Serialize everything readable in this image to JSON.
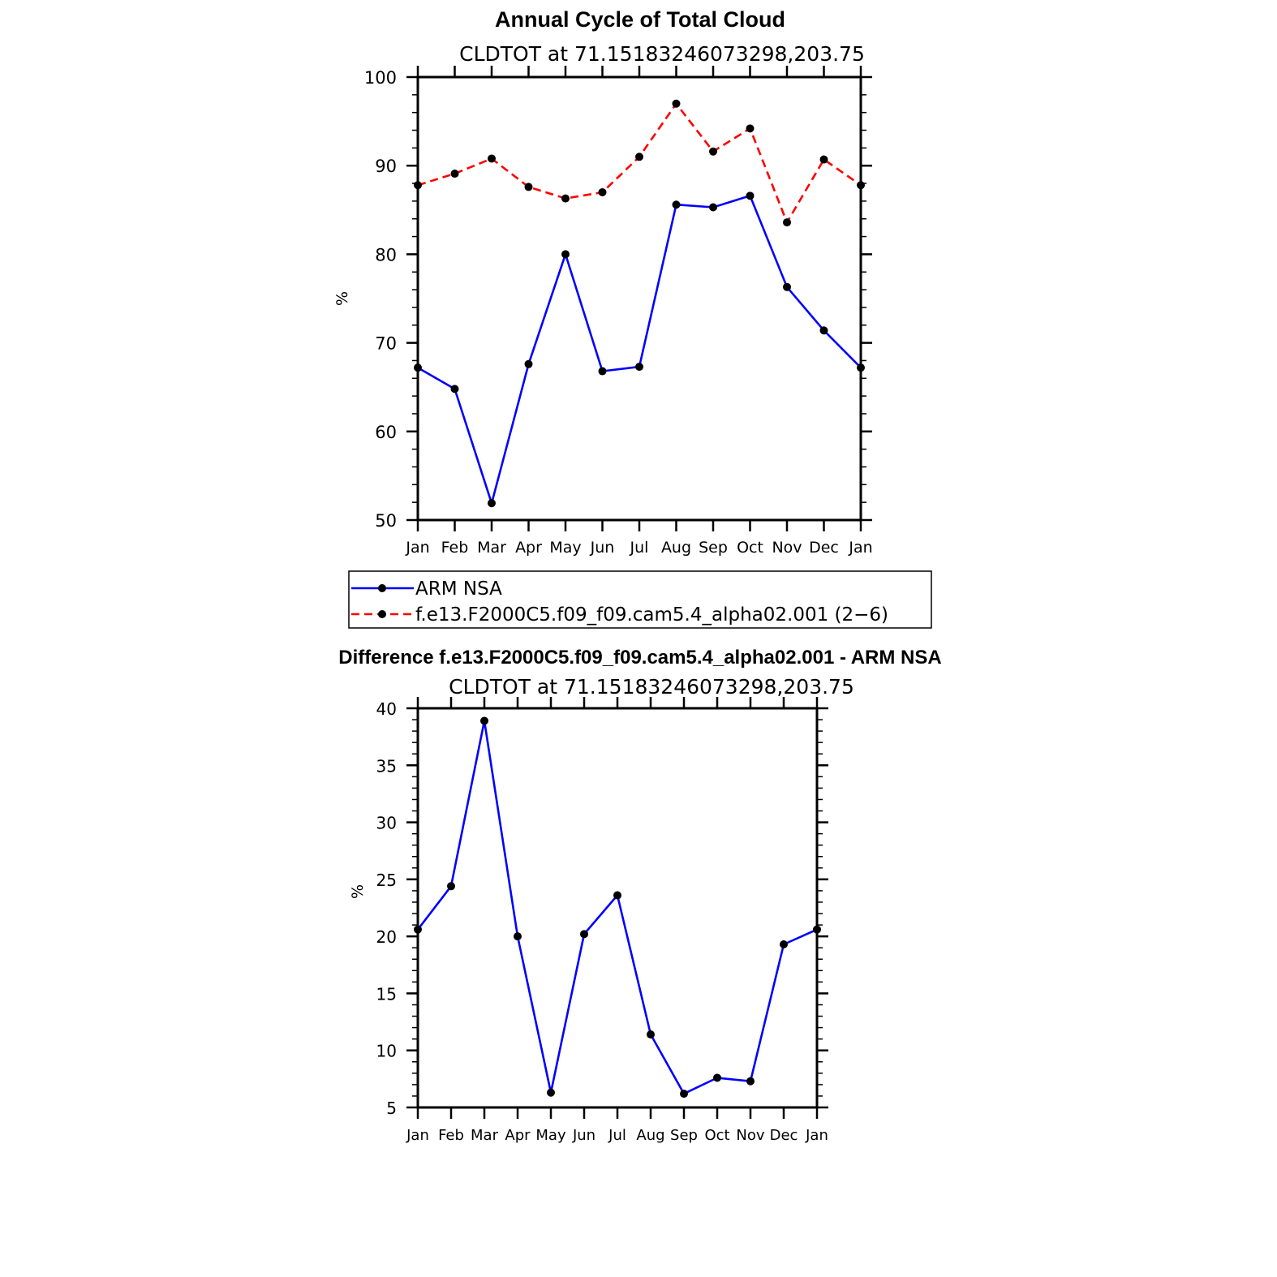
{
  "chart_data": [
    {
      "type": "line",
      "title": "Annual Cycle of Total Cloud",
      "subtitle": "CLDTOT at 71.15183246073298,203.75",
      "xlabel": "",
      "ylabel": "%",
      "categories": [
        "Jan",
        "Feb",
        "Mar",
        "Apr",
        "May",
        "Jun",
        "Jul",
        "Aug",
        "Sep",
        "Oct",
        "Nov",
        "Dec",
        "Jan"
      ],
      "ylim": [
        50,
        100
      ],
      "yticks": [
        50,
        60,
        70,
        80,
        90,
        100
      ],
      "grid": false,
      "legend_position": "bottom",
      "series": [
        {
          "name": "ARM NSA",
          "color": "#0000ff",
          "style": "solid",
          "values": [
            67.2,
            64.8,
            51.9,
            67.6,
            80.0,
            66.8,
            67.3,
            85.6,
            85.3,
            86.6,
            76.3,
            71.4,
            67.2
          ]
        },
        {
          "name": "f.e13.F2000C5.f09_f09.cam5.4_alpha02.001 (2−6)",
          "color": "#ff0000",
          "style": "dashed",
          "values": [
            87.8,
            89.1,
            90.8,
            87.6,
            86.3,
            87.0,
            91.0,
            97.0,
            91.6,
            94.2,
            83.6,
            90.7,
            87.8
          ]
        }
      ]
    },
    {
      "type": "line",
      "title": "Difference f.e13.F2000C5.f09_f09.cam5.4_alpha02.001 - ARM NSA",
      "subtitle": "CLDTOT at 71.15183246073298,203.75",
      "xlabel": "",
      "ylabel": "%",
      "categories": [
        "Jan",
        "Feb",
        "Mar",
        "Apr",
        "May",
        "Jun",
        "Jul",
        "Aug",
        "Sep",
        "Oct",
        "Nov",
        "Dec",
        "Jan"
      ],
      "ylim": [
        5,
        40
      ],
      "yticks": [
        5,
        10,
        15,
        20,
        25,
        30,
        35,
        40
      ],
      "grid": false,
      "series": [
        {
          "name": "Difference",
          "color": "#0000ff",
          "style": "solid",
          "values": [
            20.6,
            24.4,
            38.9,
            20.0,
            6.3,
            20.2,
            23.6,
            11.4,
            6.2,
            7.6,
            7.3,
            19.3,
            20.6
          ]
        }
      ]
    }
  ]
}
